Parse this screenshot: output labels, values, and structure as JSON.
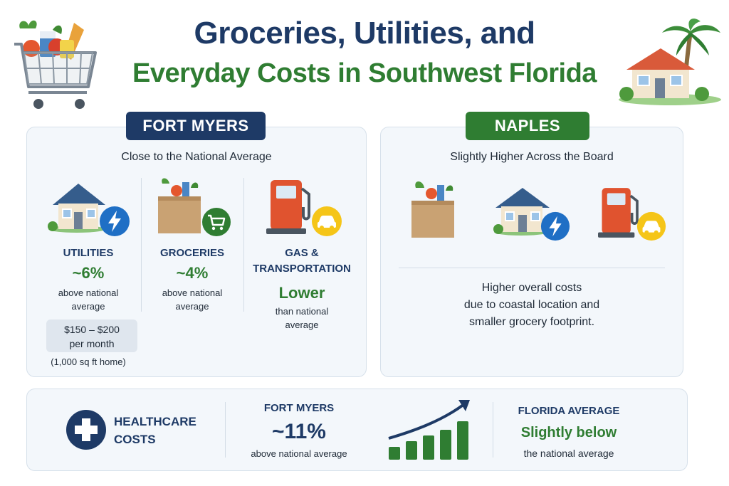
{
  "header": {
    "title_line1": "Groceries, Utilities, and",
    "title_line2": "Everyday Costs in Southwest Florida"
  },
  "fort_myers": {
    "tag": "FORT MYERS",
    "subtitle": "Close to the National Average",
    "utilities": {
      "label": "UTILITIES",
      "value": "~6%",
      "note_line1": "above national",
      "note_line2": "average",
      "cost_line1": "$150 – $200",
      "cost_line2": "per month",
      "cost_note": "(1,000 sq ft home)"
    },
    "groceries": {
      "label": "GROCERIES",
      "value": "~4%",
      "note_line1": "above national",
      "note_line2": "average"
    },
    "gas": {
      "label_line1": "GAS &",
      "label_line2": "TRANSPORTATION",
      "value": "Lower",
      "note_line1": "than national",
      "note_line2": "average"
    }
  },
  "naples": {
    "tag": "NAPLES",
    "subtitle": "Slightly Higher Across the Board",
    "text_line1": "Higher overall costs",
    "text_line2": "due to coastal location and",
    "text_line3": "smaller grocery footprint."
  },
  "healthcare": {
    "label_line1": "HEALTHCARE",
    "label_line2": "COSTS",
    "fm_label": "FORT MYERS",
    "fm_value": "~11%",
    "fm_note": "above national average",
    "fl_label": "FLORIDA AVERAGE",
    "fl_value": "Slightly below",
    "fl_note": "the national average"
  },
  "colors": {
    "navy": "#1e3a66",
    "green": "#2f7d32",
    "panel": "#f3f7fb",
    "bolt_blue": "#1f6fc5",
    "pump_red": "#e0532f",
    "car_yellow": "#f5c518"
  },
  "icons": [
    "shopping-cart-icon",
    "house-palm-icon",
    "house-icon",
    "lightning-icon",
    "grocery-bag-icon",
    "cart-badge-icon",
    "gas-pump-icon",
    "car-icon",
    "medical-cross-icon",
    "growth-chart-icon"
  ]
}
